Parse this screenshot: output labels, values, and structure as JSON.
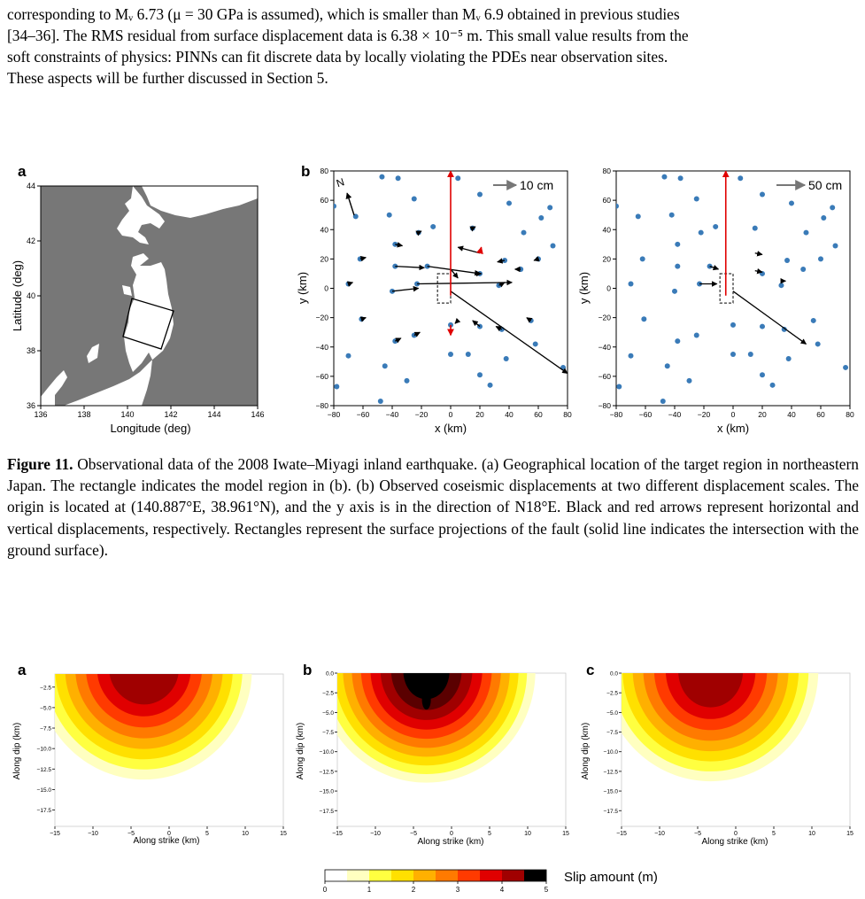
{
  "body_text": {
    "lines": [
      "corresponding to Mᵥ 6.73 (μ  = 30 GPa is assumed), which is smaller than Mᵥ 6.9 obtained in previous studies",
      "[34–36]. The RMS residual from surface displacement data is 6.38 × 10⁻⁵ m. This small value results from the",
      "soft constraints of physics: PINNs can fit discrete data by locally violating the PDEs near observation sites.",
      "These aspects will be further discussed in Section 5."
    ]
  },
  "figure11": {
    "panel_a": {
      "letter": "a",
      "xlabel": "Longitude (deg)",
      "ylabel": "Latitude (deg)",
      "xticks": [
        "136",
        "138",
        "140",
        "142",
        "144",
        "146"
      ],
      "yticks": [
        "44",
        "42",
        "40",
        "38",
        "36"
      ]
    },
    "panel_b": {
      "letter": "b",
      "north_label": "N",
      "scale_label": "10 cm",
      "xlabel": "x (km)",
      "ylabel": "y (km)",
      "xticks": [
        "−80",
        "−60",
        "−40",
        "−20",
        "0",
        "20",
        "40",
        "60",
        "80"
      ],
      "yticks": [
        "80",
        "60",
        "40",
        "20",
        "0",
        "−20",
        "−40",
        "−60",
        "−80"
      ]
    },
    "panel_c": {
      "scale_label": "50 cm",
      "xlabel": "x (km)",
      "ylabel": "y (km)",
      "xticks": [
        "−80",
        "−60",
        "−40",
        "−20",
        "0",
        "20",
        "40",
        "60",
        "80"
      ],
      "yticks": [
        "80",
        "60",
        "40",
        "20",
        "0",
        "−20",
        "−40",
        "−60",
        "−80"
      ]
    },
    "caption_label": "Figure 11.",
    "caption_text": "Observational data of the 2008 Iwate–Miyagi inland earthquake. (a) Geographical location of the target region in northeastern Japan. The rectangle indicates the model region in (b). (b) Observed coseismic displacements at two different displacement scales. The origin is located at (140.887°E, 38.961°N), and the y axis is in the direction of N18°E. Black and red arrows represent horizontal and vertical displacements, respectively. Rectangles represent the surface projections of the fault (solid line indicates the intersection with the ground surface)."
  },
  "figure12": {
    "panels": [
      {
        "letter": "a",
        "xlabel": "Along strike (km)",
        "ylabel": "Along dip (km)",
        "peak_slip": 4.4
      },
      {
        "letter": "b",
        "xlabel": "Along strike (km)",
        "ylabel": "Along dip (km)",
        "peak_slip": 5.0
      },
      {
        "letter": "c",
        "xlabel": "Along strike (km)",
        "ylabel": "Along dip (km)",
        "peak_slip": 4.3
      }
    ],
    "xticks": [
      "−15",
      "−10",
      "−5",
      "0",
      "5",
      "10",
      "15"
    ],
    "yticks_a": [
      "−2.5",
      "−5.0",
      "−7.5",
      "−10.0",
      "−12.5",
      "−15.0",
      "−17.5"
    ],
    "yticks_bc": [
      "0.0",
      "−2.5",
      "−5.0",
      "−7.5",
      "−10.0",
      "−12.5",
      "−15.0",
      "−17.5"
    ],
    "colorbar": {
      "label": "Slip amount (m)",
      "ticks": [
        "0",
        "1",
        "2",
        "3",
        "4",
        "5"
      ],
      "colors": [
        "#ffffff",
        "#ffffc0",
        "#ffff40",
        "#ffe000",
        "#ffb000",
        "#ff7a00",
        "#ff3a00",
        "#e00000",
        "#a00000",
        "#5a0000",
        "#000000"
      ]
    }
  },
  "chart_data": [
    {
      "type": "scatter",
      "title": "b (10 cm scale)",
      "xlabel": "x (km)",
      "ylabel": "y (km)",
      "xlim": [
        -80,
        80
      ],
      "ylim": [
        -80,
        80
      ],
      "stations": [
        [
          -47,
          76
        ],
        [
          -36,
          75
        ],
        [
          5,
          75
        ],
        [
          -80,
          56
        ],
        [
          -65,
          49
        ],
        [
          -42,
          50
        ],
        [
          -25,
          61
        ],
        [
          20,
          64
        ],
        [
          40,
          58
        ],
        [
          68,
          55
        ],
        [
          -12,
          42
        ],
        [
          15,
          41
        ],
        [
          50,
          38
        ],
        [
          62,
          48
        ],
        [
          70,
          29
        ],
        [
          -38,
          30
        ],
        [
          -22,
          38
        ],
        [
          -62,
          20
        ],
        [
          -38,
          15
        ],
        [
          -16,
          15
        ],
        [
          37,
          19
        ],
        [
          20,
          10
        ],
        [
          48,
          13
        ],
        [
          -70,
          3
        ],
        [
          -40,
          -2
        ],
        [
          -23,
          3
        ],
        [
          33,
          2
        ],
        [
          60,
          20
        ],
        [
          -61,
          -21
        ],
        [
          -38,
          -36
        ],
        [
          -25,
          -32
        ],
        [
          0,
          -25
        ],
        [
          20,
          -26
        ],
        [
          35,
          -28
        ],
        [
          55,
          -22
        ],
        [
          -70,
          -46
        ],
        [
          -45,
          -53
        ],
        [
          -30,
          -63
        ],
        [
          0,
          -45
        ],
        [
          12,
          -45
        ],
        [
          20,
          -59
        ],
        [
          38,
          -48
        ],
        [
          58,
          -38
        ],
        [
          77,
          -54
        ],
        [
          -78,
          -67
        ],
        [
          -48,
          -77
        ],
        [
          27,
          -66
        ]
      ],
      "horizontal_arrows": [
        [
          -70,
          3,
          -67,
          4
        ],
        [
          -62,
          20,
          -58,
          21
        ],
        [
          -38,
          15,
          -18,
          14
        ],
        [
          -40,
          -2,
          -22,
          0
        ],
        [
          -23,
          3,
          42,
          4
        ],
        [
          -16,
          15,
          20,
          10
        ],
        [
          -38,
          30,
          -33,
          29
        ],
        [
          20,
          10,
          21,
          10
        ],
        [
          37,
          19,
          32,
          18
        ],
        [
          48,
          13,
          44,
          13
        ],
        [
          0,
          -2,
          80,
          -58
        ],
        [
          -61,
          -21,
          -58,
          -20
        ],
        [
          -38,
          -36,
          -34,
          -34
        ],
        [
          -25,
          -32,
          -21,
          -30
        ],
        [
          20,
          -26,
          15,
          -22
        ],
        [
          35,
          -28,
          31,
          -26
        ],
        [
          55,
          -22,
          52,
          -20
        ],
        [
          33,
          2,
          37,
          4
        ],
        [
          -22,
          38,
          -20,
          39
        ],
        [
          15,
          41,
          17,
          42
        ],
        [
          0,
          13,
          5,
          7
        ],
        [
          20,
          24,
          5,
          28
        ],
        [
          60,
          20,
          57,
          19
        ],
        [
          5,
          -22,
          3,
          -24
        ]
      ],
      "vertical_arrows": [
        [
          0,
          -5,
          0,
          80
        ],
        [
          20,
          24,
          21,
          28
        ],
        [
          0,
          -25,
          0,
          -32
        ]
      ]
    },
    {
      "type": "scatter",
      "title": "b (50 cm scale)",
      "xlabel": "x (km)",
      "ylabel": "y (km)",
      "xlim": [
        -80,
        80
      ],
      "ylim": [
        -80,
        80
      ],
      "stations": [
        [
          -47,
          76
        ],
        [
          -36,
          75
        ],
        [
          5,
          75
        ],
        [
          -80,
          56
        ],
        [
          -65,
          49
        ],
        [
          -42,
          50
        ],
        [
          -25,
          61
        ],
        [
          20,
          64
        ],
        [
          40,
          58
        ],
        [
          68,
          55
        ],
        [
          -12,
          42
        ],
        [
          15,
          41
        ],
        [
          50,
          38
        ],
        [
          62,
          48
        ],
        [
          70,
          29
        ],
        [
          -38,
          30
        ],
        [
          -22,
          38
        ],
        [
          -62,
          20
        ],
        [
          -38,
          15
        ],
        [
          -16,
          15
        ],
        [
          37,
          19
        ],
        [
          20,
          10
        ],
        [
          48,
          13
        ],
        [
          -70,
          3
        ],
        [
          -40,
          -2
        ],
        [
          -23,
          3
        ],
        [
          33,
          2
        ],
        [
          60,
          20
        ],
        [
          -61,
          -21
        ],
        [
          -38,
          -36
        ],
        [
          -25,
          -32
        ],
        [
          0,
          -25
        ],
        [
          20,
          -26
        ],
        [
          35,
          -28
        ],
        [
          55,
          -22
        ],
        [
          -70,
          -46
        ],
        [
          -45,
          -53
        ],
        [
          -30,
          -63
        ],
        [
          0,
          -45
        ],
        [
          12,
          -45
        ],
        [
          20,
          -59
        ],
        [
          38,
          -48
        ],
        [
          58,
          -38
        ],
        [
          77,
          -54
        ],
        [
          -78,
          -67
        ],
        [
          -48,
          -77
        ],
        [
          27,
          -66
        ]
      ],
      "horizontal_arrows": [
        [
          -23,
          3,
          -11,
          3
        ],
        [
          -16,
          15,
          -10,
          13
        ],
        [
          0,
          -2,
          50,
          -38
        ],
        [
          15,
          24,
          20,
          23
        ],
        [
          15,
          12,
          20,
          11
        ],
        [
          33,
          5,
          36,
          5
        ]
      ],
      "vertical_arrows": [
        [
          -5,
          -5,
          -5,
          80
        ]
      ]
    }
  ]
}
